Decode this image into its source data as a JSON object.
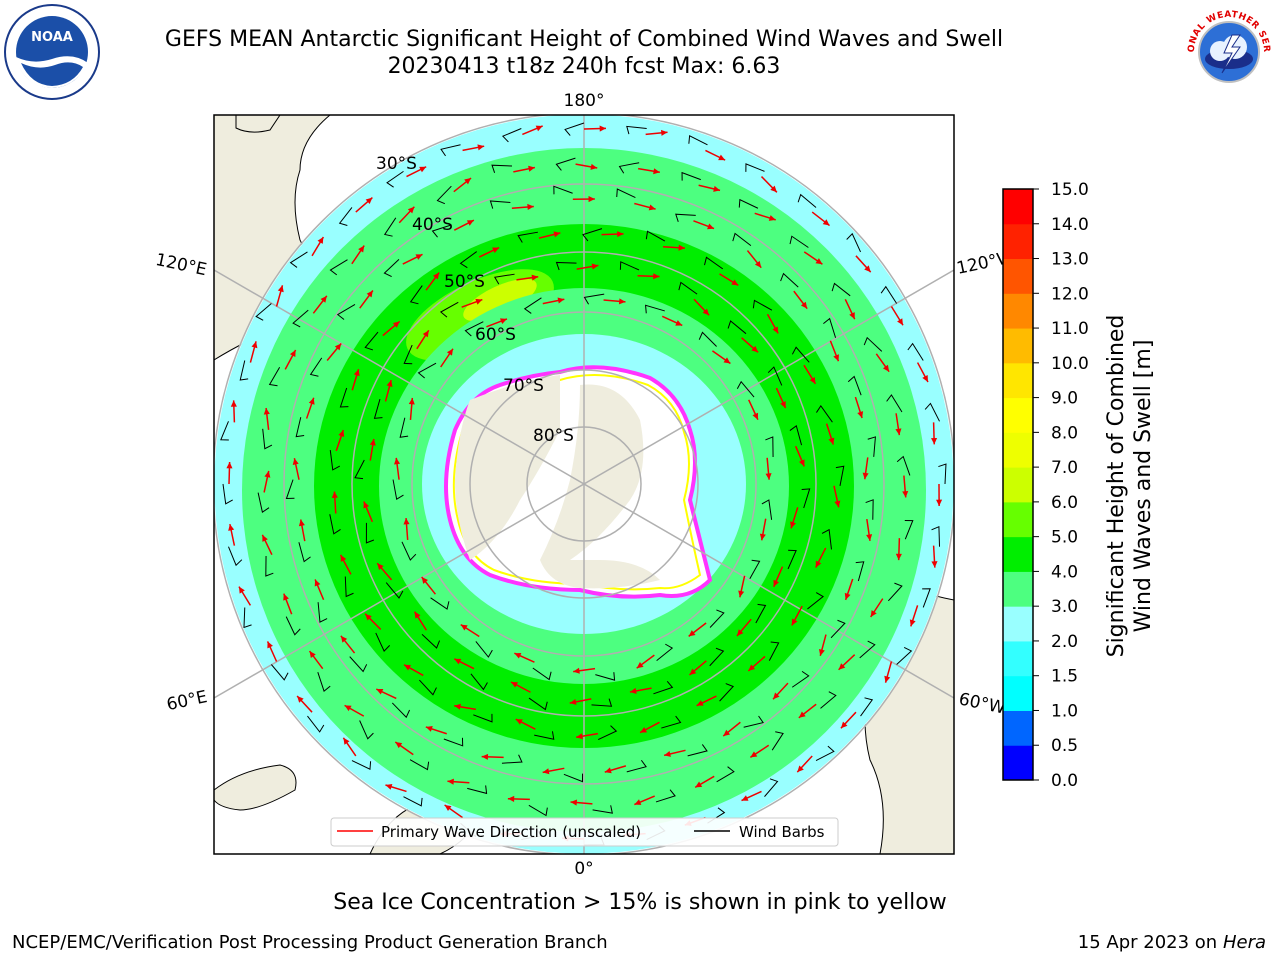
{
  "title": {
    "line1": "GEFS MEAN Antarctic Significant Height of Combined Wind Waves and Swell",
    "line2": "20230413 t18z 240h fcst   Max: 6.63"
  },
  "logos": {
    "left": {
      "text": "NOAA",
      "ring_text": "NATIONAL OCEANIC AND ATMOSPHERIC ADMINISTRATION · U.S. DEPARTMENT OF COMMERCE"
    },
    "right": {
      "ring_text": "NATIONAL WEATHER SERVICE"
    }
  },
  "map": {
    "projection": "south-polar-stereographic",
    "longitude_labels": {
      "top": "180°",
      "bottom": "0°",
      "upper_left": "120°E",
      "lower_left": "60°E",
      "upper_right": "120°W",
      "lower_right": "60°W"
    },
    "latitude_labels": [
      "30°S",
      "40°S",
      "50°S",
      "60°S",
      "70°S",
      "80°S"
    ],
    "land_color": "#efedde",
    "ice_color_range": [
      "#ff33ff",
      "#ffff00"
    ]
  },
  "legend": {
    "primary_wave": "Primary Wave Direction (unscaled)",
    "wind_barbs": "Wind Barbs",
    "primary_wave_color": "#ff0000",
    "wind_barb_color": "#000000"
  },
  "colorbar": {
    "label_line1": "Significant Height of Combined",
    "label_line2": "Wind Waves and Swell [m]",
    "levels": [
      "0.0",
      "0.5",
      "1.0",
      "1.5",
      "2.0",
      "3.0",
      "4.0",
      "5.0",
      "6.0",
      "7.0",
      "8.0",
      "9.0",
      "10.0",
      "11.0",
      "12.0",
      "13.0",
      "14.0",
      "15.0"
    ],
    "colors": [
      "#0000ff",
      "#0066ff",
      "#00ffff",
      "#33ffff",
      "#99ffff",
      "#4dff80",
      "#00ee00",
      "#66ff00",
      "#ccff00",
      "#eeff00",
      "#ffff00",
      "#ffe600",
      "#ffbb00",
      "#ff8800",
      "#ff5500",
      "#ff2200",
      "#ff0000"
    ]
  },
  "note": "Sea Ice Concentration > 15% is shown in pink to yellow",
  "footer": {
    "left": "NCEP/EMC/Verification Post Processing Product Generation Branch",
    "right_prefix": "15 Apr 2023 on ",
    "right_host": "Hera"
  }
}
